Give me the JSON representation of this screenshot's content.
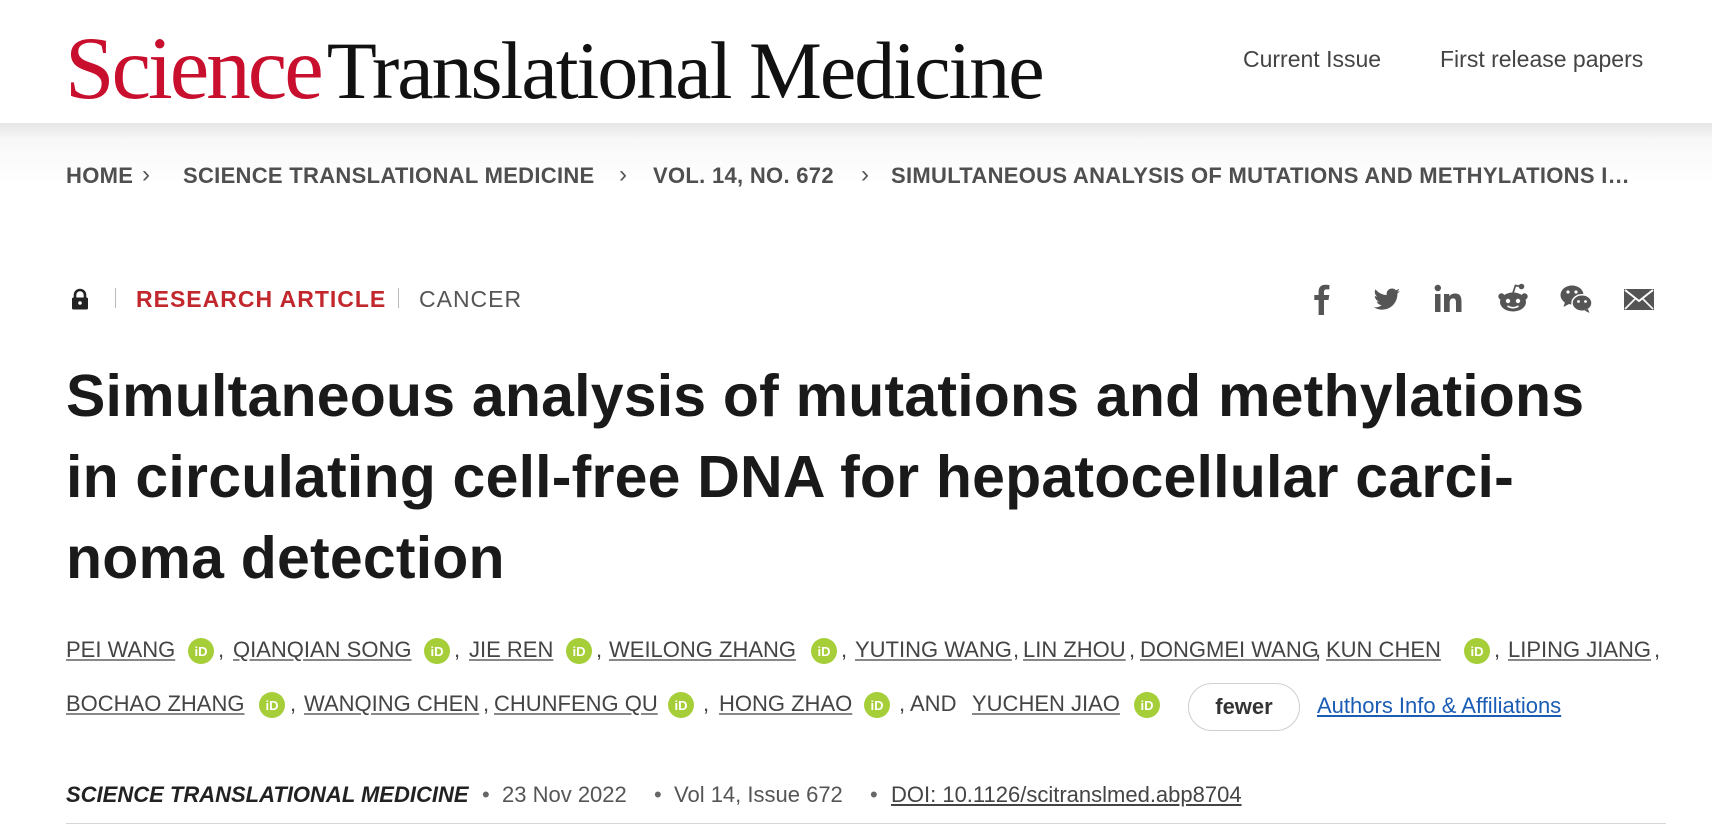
{
  "header": {
    "brand_science": "Science",
    "brand_rest": "Translational Medicine",
    "nav": [
      "Current Issue",
      "First release papers"
    ]
  },
  "breadcrumb": [
    "HOME",
    "SCIENCE TRANSLATIONAL MEDICINE",
    "VOL. 14, NO. 672",
    "SIMULTANEOUS ANALYSIS OF MUTATIONS AND METHYLATIONS I…"
  ],
  "article": {
    "access_icon": "lock-icon",
    "type": "RESEARCH ARTICLE",
    "subject": "CANCER",
    "title": "Simultaneous analysis of mutations and methylations in circulating cell-free DNA for hepatocellular carci-noma detection",
    "share_icons": [
      "facebook-icon",
      "twitter-icon",
      "linkedin-icon",
      "reddit-icon",
      "wechat-icon",
      "email-icon"
    ]
  },
  "authors": {
    "names": [
      "PEI WANG",
      "QIANQIAN SONG",
      "JIE REN",
      "WEILONG ZHANG",
      "YUTING WANG",
      "LIN ZHOU",
      "DONGMEI WANG",
      "KUN CHEN",
      "LIPING JIANG",
      "BOCHAO ZHANG",
      "WANQING CHEN",
      "CHUNFENG QU",
      "HONG ZHAO",
      "YUCHEN JIAO"
    ],
    "separator": ",",
    "and_label": ", AND",
    "fewer_label": "fewer",
    "affiliations_label": "Authors Info & Affiliations"
  },
  "citation": {
    "journal": "SCIENCE TRANSLATIONAL MEDICINE",
    "separator": "•",
    "date": "23 Nov 2022",
    "volume_issue": "Vol 14, Issue 672",
    "doi": "DOI: 10.1126/scitranslmed.abp8704"
  },
  "colors": {
    "brand_red": "#c8102e",
    "article_type_red": "#c1272d",
    "orcid_green": "#a6ce39",
    "link_blue": "#1b5db5"
  }
}
